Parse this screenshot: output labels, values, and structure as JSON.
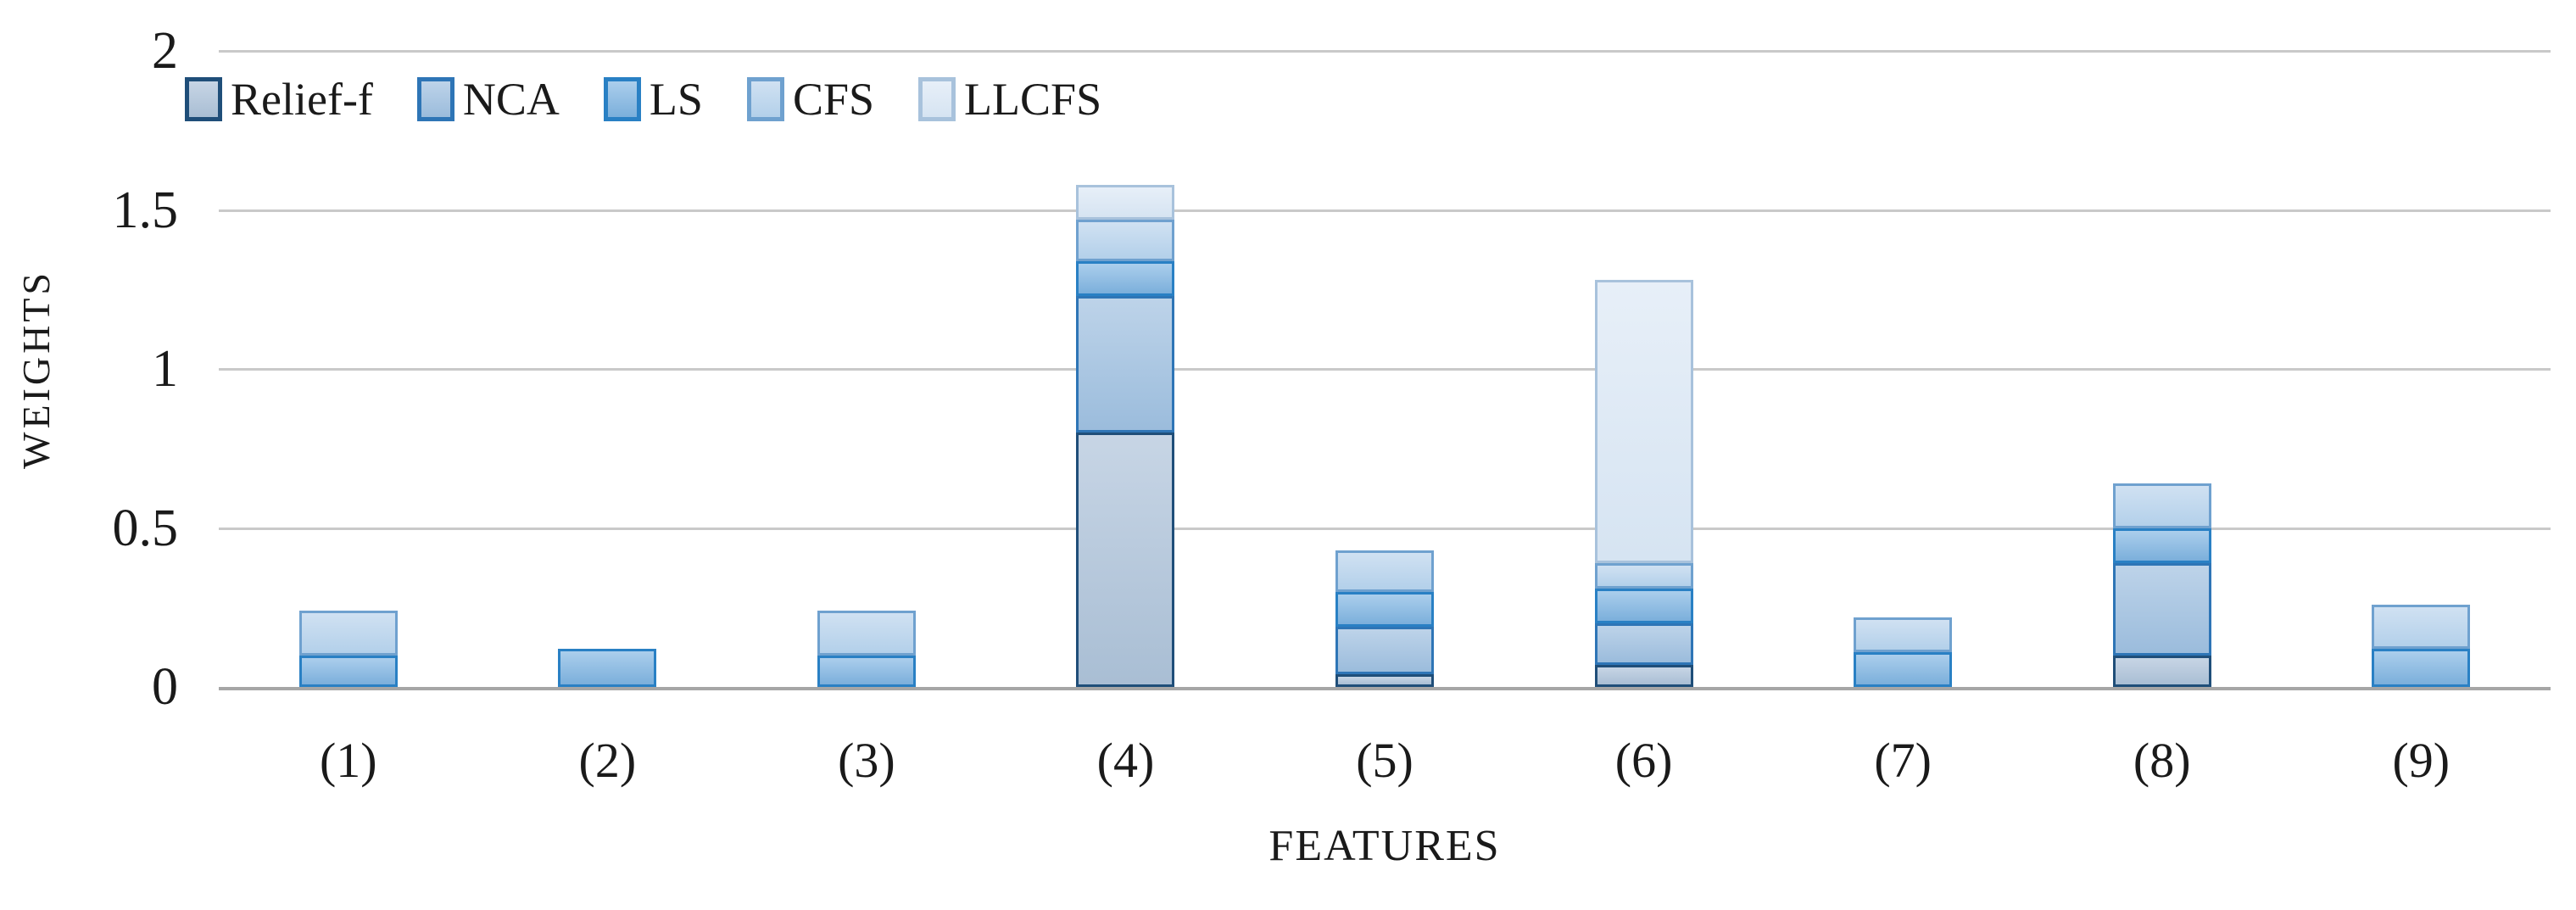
{
  "chart_data": {
    "type": "bar",
    "variant": "stacked-vertical",
    "title": "",
    "xlabel": "FEATURES",
    "ylabel": "WEIGHTS",
    "ylim": [
      0,
      2
    ],
    "grid": true,
    "legend_position": "top-left-inside",
    "y_ticks": [
      {
        "label": "2",
        "value": 2.0
      },
      {
        "label": "1.5",
        "value": 1.5
      },
      {
        "label": "1",
        "value": 1.0
      },
      {
        "label": "0.5",
        "value": 0.5
      },
      {
        "label": "0",
        "value": 0.0
      }
    ],
    "categories": [
      "(1)",
      "(2)",
      "(3)",
      "(4)",
      "(5)",
      "(6)",
      "(7)",
      "(8)",
      "(9)"
    ],
    "series": [
      {
        "name": "Relief-f",
        "values": [
          0,
          0,
          0,
          0.8,
          0.04,
          0.07,
          0,
          0.1,
          0
        ],
        "fill": "#a9bed4",
        "fill_light": "#c7d5e5",
        "border": "#1f4e79"
      },
      {
        "name": "NCA",
        "values": [
          0,
          0,
          0,
          0.43,
          0.15,
          0.13,
          0,
          0.29,
          0
        ],
        "fill": "#9bbcdc",
        "fill_light": "#bdd3e9",
        "border": "#2e75b6"
      },
      {
        "name": "LS",
        "values": [
          0.1,
          0.12,
          0.1,
          0.11,
          0.11,
          0.11,
          0.11,
          0.11,
          0.12
        ],
        "fill": "#7bafdb",
        "fill_light": "#abceec",
        "border": "#2980c4"
      },
      {
        "name": "CFS",
        "values": [
          0.14,
          0,
          0.14,
          0.13,
          0.13,
          0.08,
          0.11,
          0.14,
          0.14
        ],
        "fill": "#b3d0ea",
        "fill_light": "#d0e1f2",
        "border": "#6fa1cf"
      },
      {
        "name": "LLCFS",
        "values": [
          0,
          0,
          0,
          0.11,
          0,
          0.89,
          0,
          0,
          0
        ],
        "fill": "#d6e4f2",
        "fill_light": "#e7eff8",
        "border": "#a8c2dc"
      }
    ],
    "stack_totals": [
      0.24,
      0.12,
      0.24,
      1.58,
      0.43,
      1.28,
      0.22,
      0.64,
      0.26
    ],
    "axis_style": {
      "gridline_color": "#c9c9c9",
      "axis_line_color": "#a6a6a6",
      "text_color": "#1a1a1a"
    }
  }
}
